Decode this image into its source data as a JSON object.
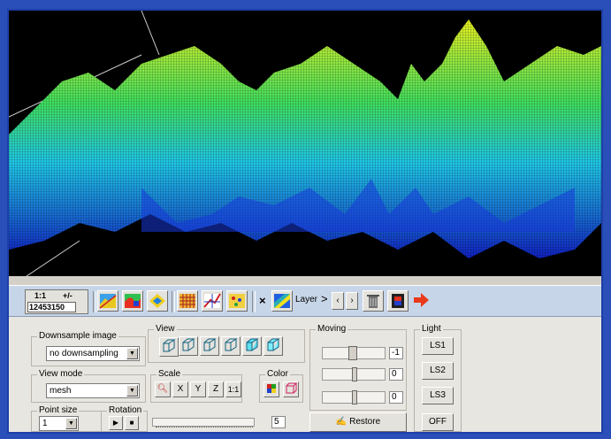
{
  "toolbar": {
    "zoom_ratio_label": "1:1",
    "plus_minus_label": "+/-",
    "zoom_value": "12453150",
    "axis_x_label": "×",
    "layer_label": "Layer",
    "arrow_right_label": ">",
    "nav_left_label": "‹",
    "nav_right_label": "›",
    "icons": [
      "map-icon",
      "terrain-icon",
      "layers-icon",
      "grid-icon",
      "profile-icon",
      "points-icon",
      "layer-image-icon",
      "trash-icon",
      "film-icon",
      "exit-arrow-icon"
    ]
  },
  "controls": {
    "downsample": {
      "label": "Downsample image",
      "value": "no downsampling"
    },
    "view_mode": {
      "label": "View mode",
      "value": "mesh"
    },
    "point_size": {
      "label": "Point size",
      "value": "1"
    },
    "rotation": {
      "label": "Rotation",
      "value": "5"
    },
    "view": {
      "label": "View"
    },
    "scale": {
      "label": "Scale",
      "x": "X",
      "y": "Y",
      "z": "Z",
      "ratio": "1:1"
    },
    "color": {
      "label": "Color"
    },
    "moving": {
      "label": "Moving",
      "values": [
        "-1",
        "0",
        "0"
      ],
      "restore_label": "Restore"
    },
    "light": {
      "label": "Light",
      "buttons": [
        "LS1",
        "LS2",
        "LS3"
      ],
      "off_label": "OFF"
    }
  },
  "colors": {
    "mesh_low": "#1030e0",
    "mesh_mid": "#20d8e8",
    "mesh_high": "#f0f020",
    "toolbar_bg": "#c7d5e8"
  }
}
